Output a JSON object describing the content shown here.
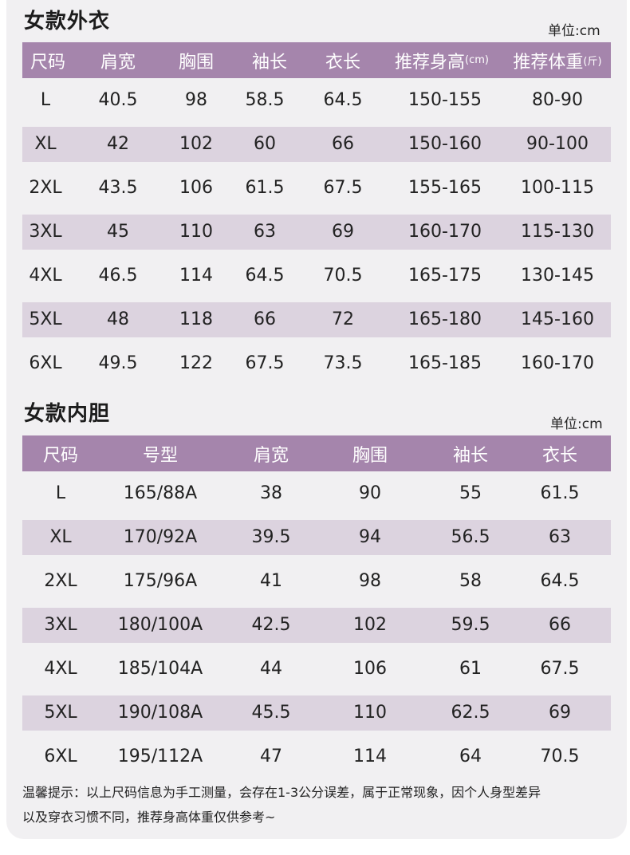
{
  "outer": {
    "title": "女款外衣",
    "unit": "单位:cm",
    "headers": [
      "尺码",
      "肩宽",
      "胸围",
      "袖长",
      "衣长",
      "推荐身高",
      "推荐体重"
    ],
    "header_suffix": {
      "height": "(cm)",
      "weight": "(斤)"
    },
    "rows": [
      [
        "L",
        "40.5",
        "98",
        "58.5",
        "64.5",
        "150-155",
        "80-90"
      ],
      [
        "XL",
        "42",
        "102",
        "60",
        "66",
        "150-160",
        "90-100"
      ],
      [
        "2XL",
        "43.5",
        "106",
        "61.5",
        "67.5",
        "155-165",
        "100-115"
      ],
      [
        "3XL",
        "45",
        "110",
        "63",
        "69",
        "160-170",
        "115-130"
      ],
      [
        "4XL",
        "46.5",
        "114",
        "64.5",
        "70.5",
        "165-175",
        "130-145"
      ],
      [
        "5XL",
        "48",
        "118",
        "66",
        "72",
        "165-180",
        "145-160"
      ],
      [
        "6XL",
        "49.5",
        "122",
        "67.5",
        "73.5",
        "165-185",
        "160-170"
      ]
    ]
  },
  "inner": {
    "title": "女款内胆",
    "unit": "单位:cm",
    "headers": [
      "尺码",
      "号型",
      "肩宽",
      "胸围",
      "袖长",
      "衣长"
    ],
    "rows": [
      [
        "L",
        "165/88A",
        "38",
        "90",
        "55",
        "61.5"
      ],
      [
        "XL",
        "170/92A",
        "39.5",
        "94",
        "56.5",
        "63"
      ],
      [
        "2XL",
        "175/96A",
        "41",
        "98",
        "58",
        "64.5"
      ],
      [
        "3XL",
        "180/100A",
        "42.5",
        "102",
        "59.5",
        "66"
      ],
      [
        "4XL",
        "185/104A",
        "44",
        "106",
        "61",
        "67.5"
      ],
      [
        "5XL",
        "190/108A",
        "45.5",
        "110",
        "62.5",
        "69"
      ],
      [
        "6XL",
        "195/112A",
        "47",
        "114",
        "64",
        "70.5"
      ]
    ]
  },
  "notice": {
    "line1": "温馨提示：以上尺码信息为手工测量，会存在1-3公分误差，属于正常现象，因个人身型差异",
    "line2": "以及穿衣习惯不同，推荐身高体重仅供参考~"
  },
  "colors": {
    "header": "#a585ac",
    "stripe": "#dcd3df",
    "card": "#f1f0f2"
  }
}
